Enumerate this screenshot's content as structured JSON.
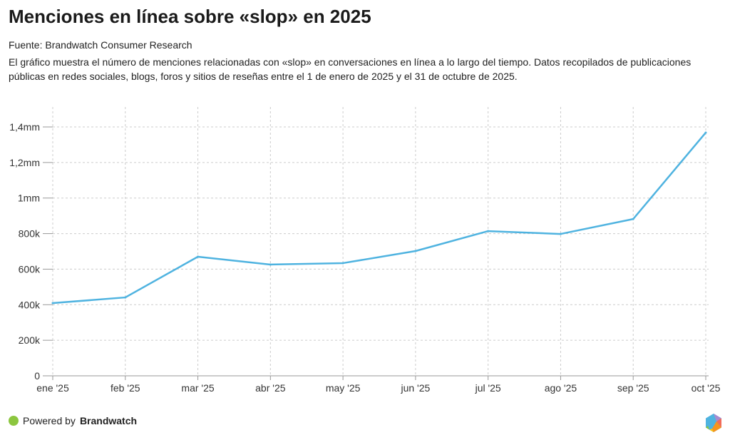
{
  "title": "Menciones en línea sobre «slop» en 2025",
  "source": "Fuente: Brandwatch Consumer Research",
  "description": "El gráfico muestra el número de menciones relacionadas con «slop» en conversaciones en línea a lo largo del tiempo. Datos recopilados de publicaciones públicas en redes sociales, blogs, foros y sitios de reseñas entre el 1 de enero de 2025 y el 31 de octubre de 2025.",
  "footer": {
    "prefix": "Powered by",
    "brand": "Brandwatch"
  },
  "colors": {
    "line": "#4fb3e0",
    "grid": "#cccccc",
    "powered_dot": "#8cc63f"
  },
  "chart_data": {
    "type": "line",
    "title": "Menciones en línea sobre «slop» en 2025",
    "categories": [
      "ene '25",
      "feb '25",
      "mar '25",
      "abr '25",
      "may '25",
      "jun '25",
      "jul '25",
      "ago '25",
      "sep '25",
      "oct '25"
    ],
    "series": [
      {
        "name": "Menciones",
        "values": [
          409000,
          441000,
          670000,
          626000,
          634000,
          702000,
          814000,
          798000,
          882000,
          1368000
        ]
      }
    ],
    "ylim": [
      0,
      1400000
    ],
    "yticks": [
      0,
      200000,
      400000,
      600000,
      800000,
      1000000,
      1200000,
      1400000
    ],
    "ytick_labels": [
      "0",
      "200k",
      "400k",
      "600k",
      "800k",
      "1mm",
      "1,2mm",
      "1,4mm"
    ],
    "grid": true,
    "xlabel": "",
    "ylabel": ""
  }
}
